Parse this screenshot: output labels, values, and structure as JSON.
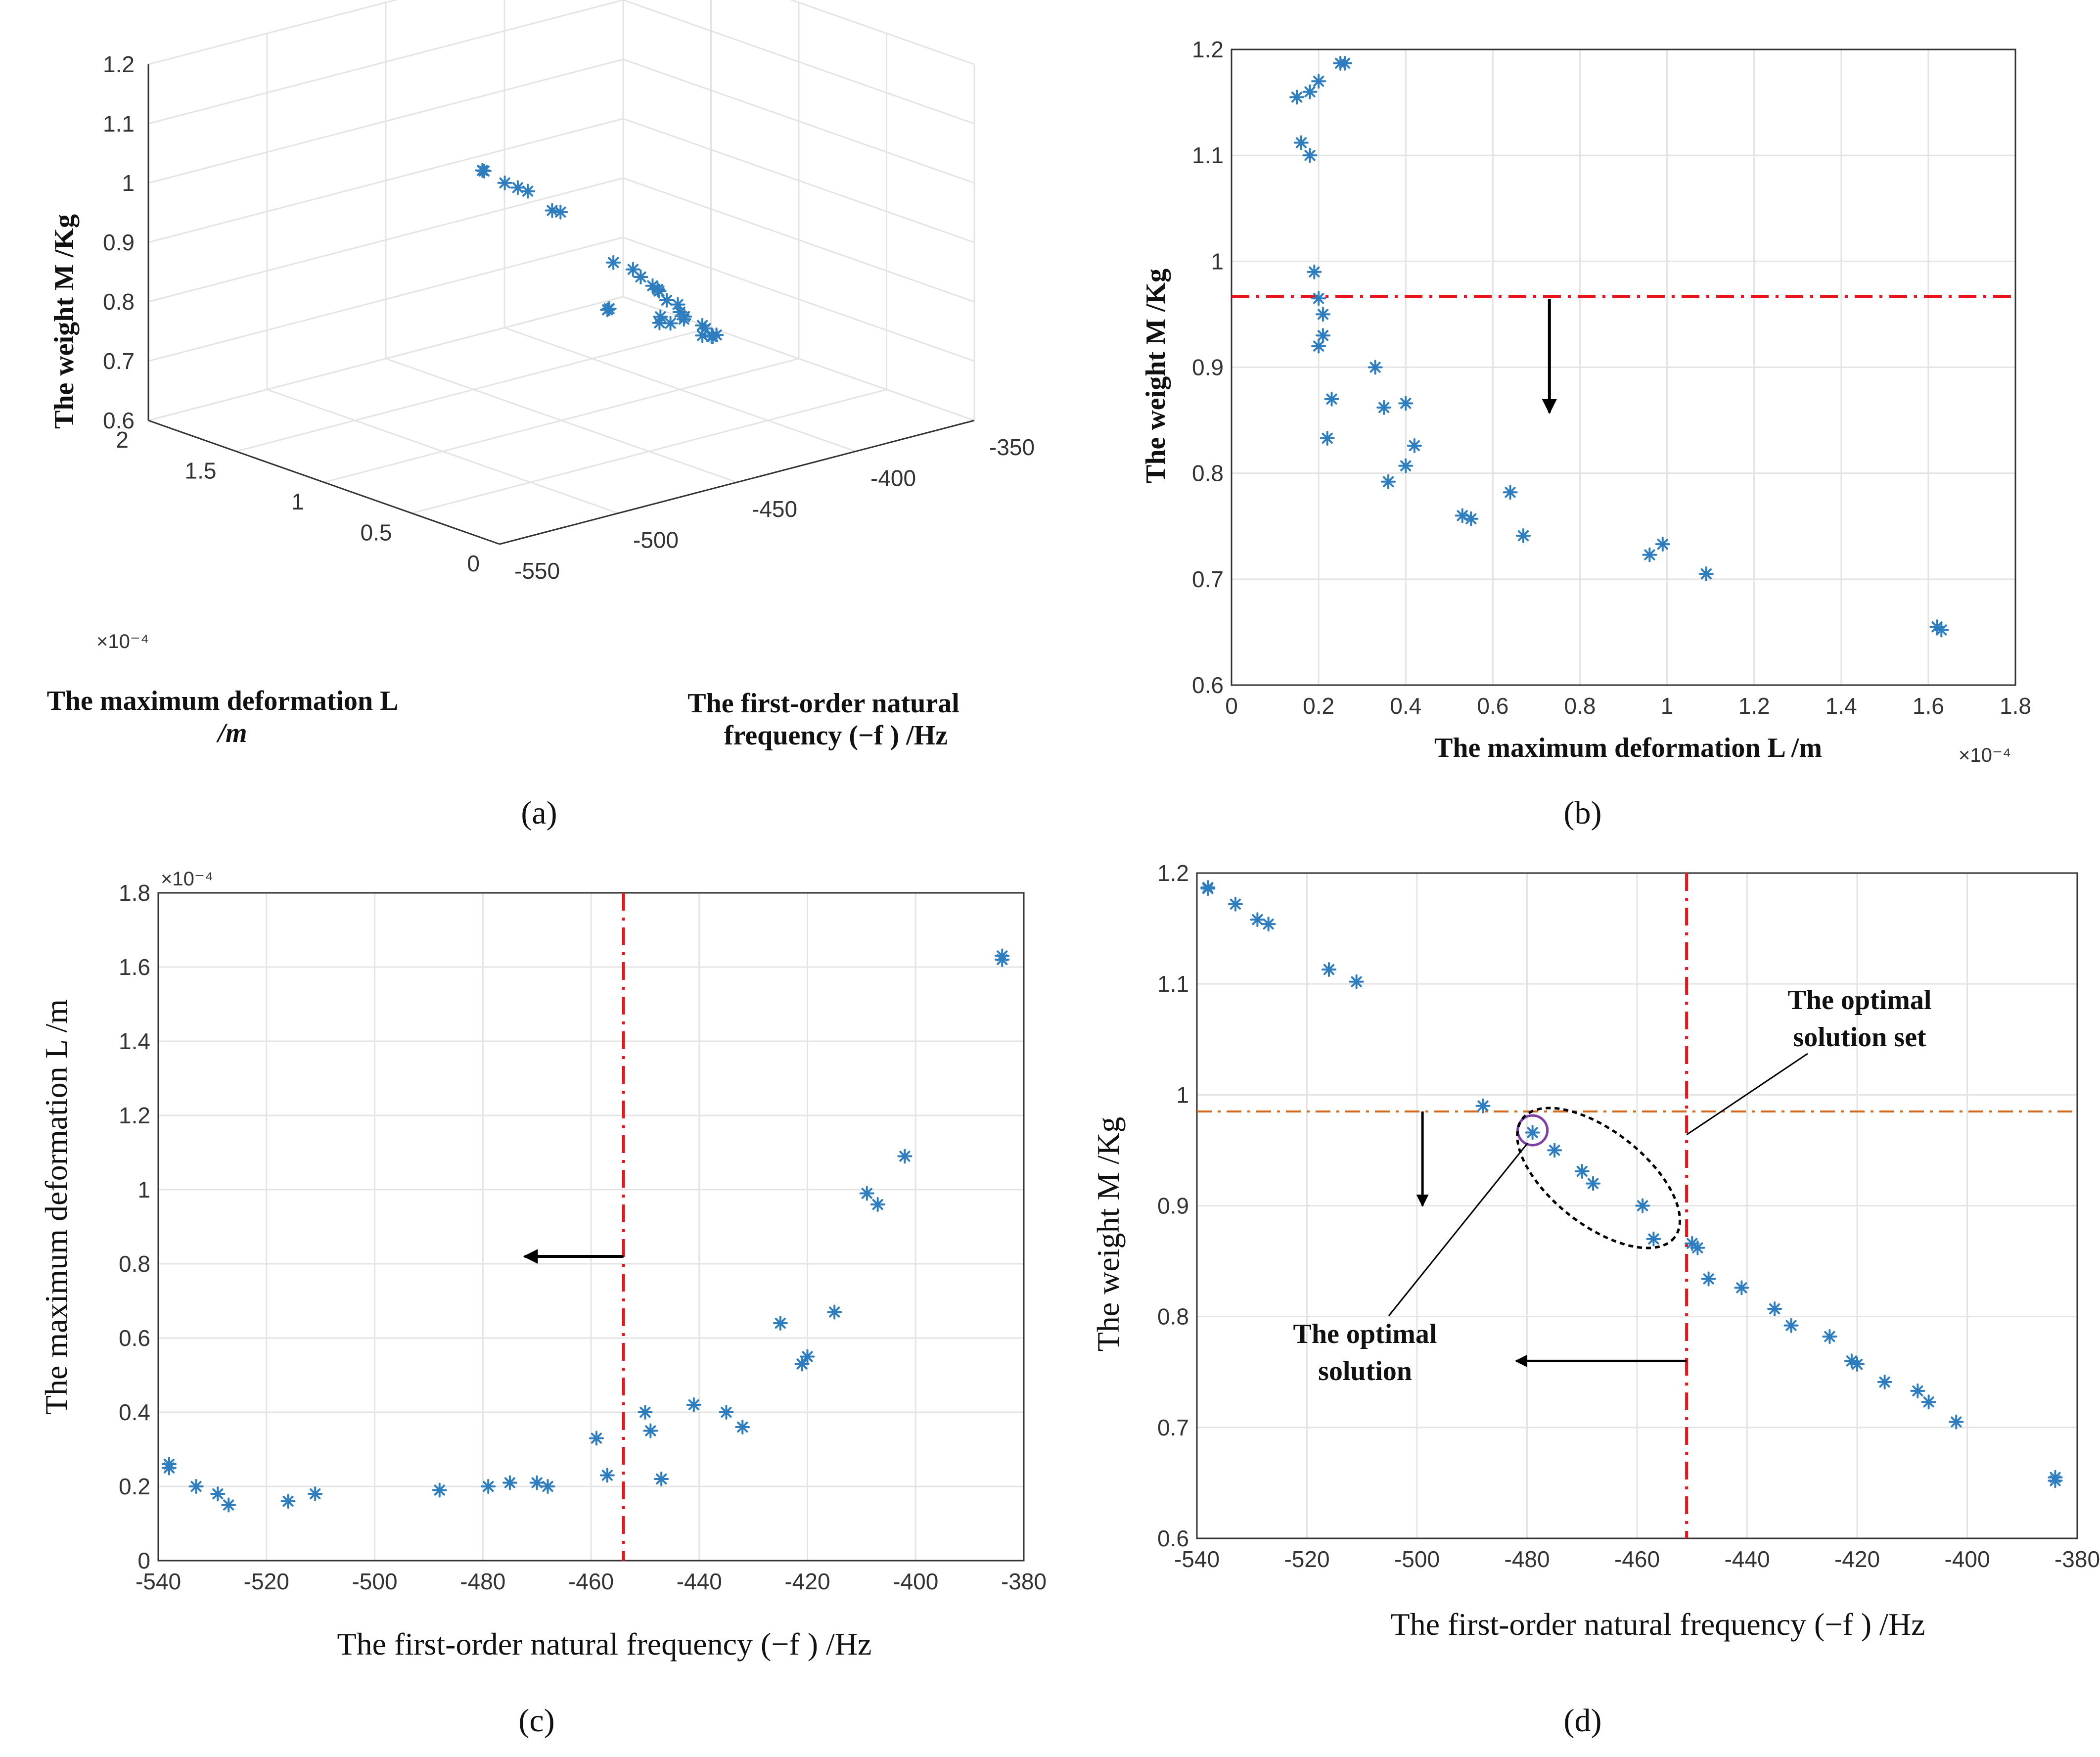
{
  "colors": {
    "marker": "#2e7ebf",
    "threshold_red": "#e8161b",
    "threshold_orange": "#d2691e",
    "circle": "#7b3fa5",
    "grid": "#e4e4e4",
    "axis": "#333333"
  },
  "panels": {
    "a": {
      "caption": "(a)",
      "zlabel": "The weight M /Kg",
      "ylabel_line1": "The maximum deformation L",
      "ylabel_line2": "/m",
      "xlabel_line1": "The first-order natural",
      "xlabel_line2": "frequency (−f ) /Hz",
      "z_ticks": [
        "0.6",
        "0.7",
        "0.8",
        "0.9",
        "1",
        "1.1",
        "1.2"
      ],
      "y_ticks": [
        "0",
        "0.5",
        "1",
        "1.5",
        "2"
      ],
      "x_ticks": [
        "-550",
        "-500",
        "-450",
        "-400",
        "-350"
      ],
      "y_exponent": "×10⁻⁴"
    },
    "b": {
      "caption": "(b)",
      "xlabel": "The maximum deformation L /m",
      "ylabel": "The weight M /Kg",
      "x_ticks": [
        "0",
        "0.2",
        "0.4",
        "0.6",
        "0.8",
        "1",
        "1.2",
        "1.4",
        "1.6",
        "1.8"
      ],
      "y_ticks": [
        "0.6",
        "0.7",
        "0.8",
        "0.9",
        "1",
        "1.1",
        "1.2"
      ],
      "x_exponent": "×10⁻⁴"
    },
    "c": {
      "caption": "(c)",
      "xlabel": "The first-order natural frequency (−f ) /Hz",
      "ylabel": "The maximum deformation L /m",
      "x_ticks": [
        "-540",
        "-520",
        "-500",
        "-480",
        "-460",
        "-440",
        "-420",
        "-400",
        "-380"
      ],
      "y_ticks": [
        "0",
        "0.2",
        "0.4",
        "0.6",
        "0.8",
        "1",
        "1.2",
        "1.4",
        "1.6",
        "1.8"
      ],
      "y_exponent": "×10⁻⁴"
    },
    "d": {
      "caption": "(d)",
      "xlabel": "The first-order natural frequency (−f ) /Hz",
      "ylabel": "The weight M /Kg",
      "x_ticks": [
        "-540",
        "-520",
        "-500",
        "-480",
        "-460",
        "-440",
        "-420",
        "-400",
        "-380"
      ],
      "y_ticks": [
        "0.6",
        "0.7",
        "0.8",
        "0.9",
        "1",
        "1.1",
        "1.2"
      ],
      "annotation_set_line1": "The optimal",
      "annotation_set_line2": "solution set",
      "annotation_sol_line1": "The optimal",
      "annotation_sol_line2": "solution"
    }
  },
  "chart_data": [
    {
      "panel": "a",
      "type": "scatter",
      "title": "",
      "xlabel": "The first-order natural frequency (−f ) /Hz",
      "ylabel": "The maximum deformation L /m",
      "zlabel": "The weight M /Kg",
      "xlim": [
        -550,
        -350
      ],
      "ylim": [
        0,
        2
      ],
      "ylim_scale": "×10⁻⁴",
      "zlim": [
        0.6,
        1.2
      ],
      "grid": true,
      "points_xyz": [
        [
          -538,
          0.26,
          1.19
        ],
        [
          -538,
          0.25,
          1.19
        ],
        [
          -533,
          0.2,
          1.17
        ],
        [
          -529,
          0.18,
          1.16
        ],
        [
          -527,
          0.15,
          1.155
        ],
        [
          -516,
          0.16,
          1.11
        ],
        [
          -511,
          0.18,
          1.1
        ],
        [
          -488,
          0.19,
          0.99
        ],
        [
          -479,
          0.2,
          0.968
        ],
        [
          -475,
          0.21,
          0.95
        ],
        [
          -470,
          0.21,
          0.93
        ],
        [
          -468,
          0.2,
          0.92
        ],
        [
          -459,
          0.33,
          0.9
        ],
        [
          -457,
          0.23,
          0.87
        ],
        [
          -450,
          0.4,
          0.865
        ],
        [
          -449,
          0.35,
          0.862
        ],
        [
          -447,
          0.22,
          0.833
        ],
        [
          -441,
          0.42,
          0.826
        ],
        [
          -435,
          0.4,
          0.807
        ],
        [
          -432,
          0.36,
          0.792
        ],
        [
          -425,
          0.64,
          0.782
        ],
        [
          -421,
          0.53,
          0.76
        ],
        [
          -420,
          0.55,
          0.757
        ],
        [
          -415,
          0.67,
          0.741
        ],
        [
          -409,
          0.99,
          0.733
        ],
        [
          -407,
          0.96,
          0.723
        ],
        [
          -402,
          1.09,
          0.705
        ],
        [
          -384,
          1.62,
          0.655
        ],
        [
          -384,
          1.63,
          0.652
        ]
      ]
    },
    {
      "panel": "b",
      "type": "scatter",
      "title": "",
      "xlabel": "The maximum deformation L /m",
      "ylabel": "The weight M /Kg",
      "xlim": [
        0,
        1.8
      ],
      "x_scale": "×10⁻⁴",
      "ylim": [
        0.6,
        1.2
      ],
      "grid": true,
      "threshold_y": 0.967,
      "points": [
        [
          0.26,
          1.187
        ],
        [
          0.25,
          1.187
        ],
        [
          0.2,
          1.17
        ],
        [
          0.18,
          1.16
        ],
        [
          0.15,
          1.155
        ],
        [
          0.16,
          1.112
        ],
        [
          0.18,
          1.1
        ],
        [
          0.19,
          0.99
        ],
        [
          0.2,
          0.965
        ],
        [
          0.21,
          0.95
        ],
        [
          0.21,
          0.93
        ],
        [
          0.2,
          0.92
        ],
        [
          0.33,
          0.9
        ],
        [
          0.23,
          0.87
        ],
        [
          0.4,
          0.866
        ],
        [
          0.35,
          0.862
        ],
        [
          0.22,
          0.833
        ],
        [
          0.42,
          0.826
        ],
        [
          0.4,
          0.807
        ],
        [
          0.36,
          0.792
        ],
        [
          0.64,
          0.782
        ],
        [
          0.53,
          0.76
        ],
        [
          0.55,
          0.757
        ],
        [
          0.67,
          0.741
        ],
        [
          0.99,
          0.733
        ],
        [
          0.96,
          0.723
        ],
        [
          1.09,
          0.705
        ],
        [
          1.62,
          0.655
        ],
        [
          1.63,
          0.652
        ]
      ]
    },
    {
      "panel": "c",
      "type": "scatter",
      "title": "",
      "xlabel": "The first-order natural frequency (−f ) /Hz",
      "ylabel": "The maximum deformation L /m",
      "xlim": [
        -540,
        -380
      ],
      "ylim": [
        0,
        1.8
      ],
      "y_scale": "×10⁻⁴",
      "grid": true,
      "threshold_x": -454,
      "points": [
        [
          -538,
          0.26
        ],
        [
          -538,
          0.25
        ],
        [
          -533,
          0.2
        ],
        [
          -529,
          0.18
        ],
        [
          -527,
          0.15
        ],
        [
          -516,
          0.16
        ],
        [
          -511,
          0.18
        ],
        [
          -488,
          0.19
        ],
        [
          -479,
          0.2
        ],
        [
          -475,
          0.21
        ],
        [
          -470,
          0.21
        ],
        [
          -468,
          0.2
        ],
        [
          -459,
          0.33
        ],
        [
          -457,
          0.23
        ],
        [
          -450,
          0.4
        ],
        [
          -449,
          0.35
        ],
        [
          -447,
          0.22
        ],
        [
          -441,
          0.42
        ],
        [
          -435,
          0.4
        ],
        [
          -432,
          0.36
        ],
        [
          -425,
          0.64
        ],
        [
          -421,
          0.53
        ],
        [
          -420,
          0.55
        ],
        [
          -415,
          0.67
        ],
        [
          -409,
          0.99
        ],
        [
          -407,
          0.96
        ],
        [
          -402,
          1.09
        ],
        [
          -384,
          1.62
        ],
        [
          -384,
          1.63
        ]
      ]
    },
    {
      "panel": "d",
      "type": "scatter",
      "title": "",
      "xlabel": "The first-order natural frequency (−f ) /Hz",
      "ylabel": "The weight M /Kg",
      "xlim": [
        -540,
        -380
      ],
      "ylim": [
        0.6,
        1.2
      ],
      "grid": true,
      "threshold_x": -451,
      "threshold_y": 0.985,
      "optimal_solution": [
        -479,
        0.968
      ],
      "points": [
        [
          -538,
          1.187
        ],
        [
          -538,
          1.186
        ],
        [
          -533,
          1.172
        ],
        [
          -529,
          1.158
        ],
        [
          -527,
          1.154
        ],
        [
          -516,
          1.113
        ],
        [
          -511,
          1.102
        ],
        [
          -488,
          0.99
        ],
        [
          -479,
          0.966
        ],
        [
          -475,
          0.95
        ],
        [
          -470,
          0.931
        ],
        [
          -468,
          0.92
        ],
        [
          -459,
          0.9
        ],
        [
          -457,
          0.87
        ],
        [
          -450,
          0.866
        ],
        [
          -449,
          0.862
        ],
        [
          -447,
          0.834
        ],
        [
          -441,
          0.826
        ],
        [
          -435,
          0.807
        ],
        [
          -432,
          0.792
        ],
        [
          -425,
          0.782
        ],
        [
          -421,
          0.76
        ],
        [
          -420,
          0.757
        ],
        [
          -415,
          0.741
        ],
        [
          -409,
          0.733
        ],
        [
          -407,
          0.723
        ],
        [
          -402,
          0.705
        ],
        [
          -384,
          0.655
        ],
        [
          -384,
          0.652
        ]
      ]
    }
  ]
}
